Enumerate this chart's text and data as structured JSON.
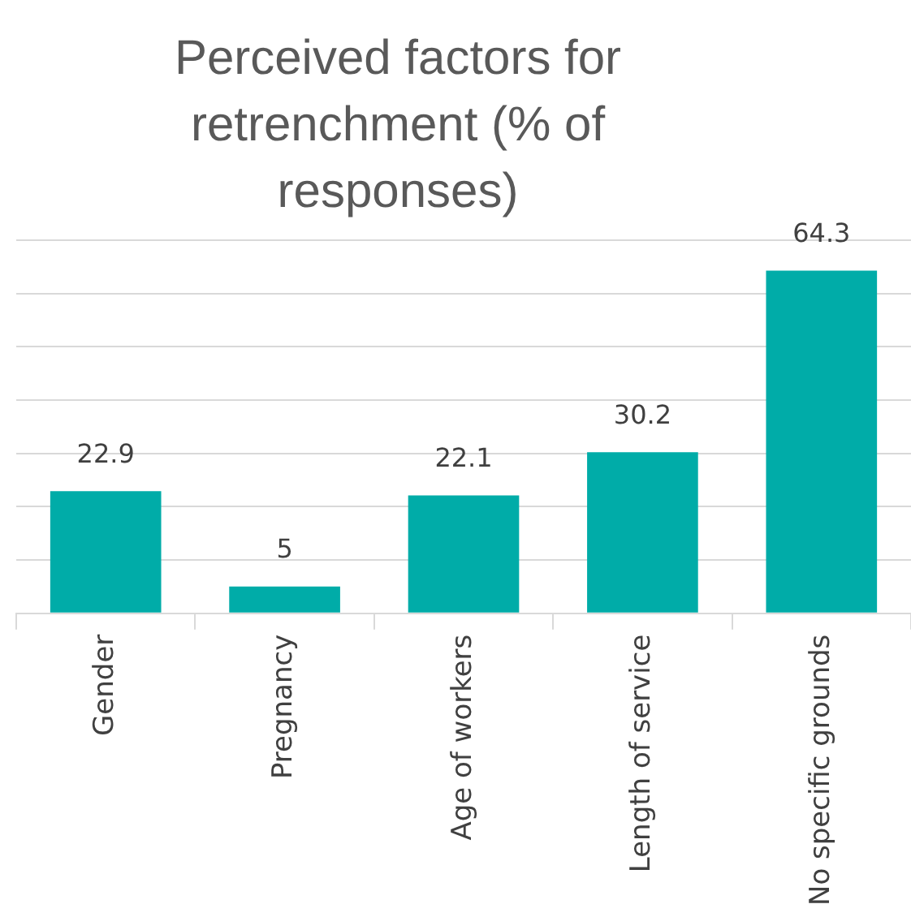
{
  "chart_data": {
    "type": "bar",
    "title": "Perceived factors for retrenchment (% of responses)",
    "categories": [
      "Gender",
      "Pregnancy",
      "Age of workers",
      "Length of service",
      "No specific grounds"
    ],
    "values": [
      22.9,
      5,
      22.1,
      30.2,
      64.3
    ],
    "color": "#00aca8",
    "ylim": [
      0,
      70
    ],
    "yticks": [
      {
        "value": 0,
        "label": null
      },
      {
        "value": 10,
        "label": null
      },
      {
        "value": 20,
        "label": null
      },
      {
        "value": 30,
        "label": null
      },
      {
        "value": 40,
        "label": null
      },
      {
        "value": 50,
        "label": null
      },
      {
        "value": 60,
        "label": null
      },
      {
        "value": 70,
        "label": null
      }
    ],
    "grid": "y",
    "tick_labels": "x",
    "data_labels": true,
    "legend": false
  }
}
